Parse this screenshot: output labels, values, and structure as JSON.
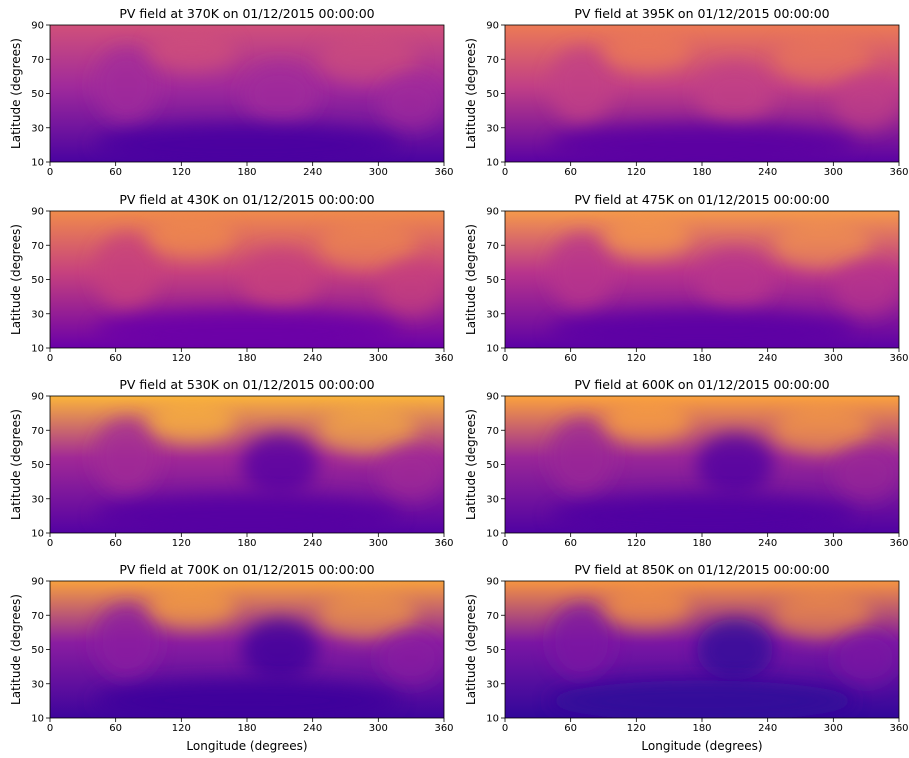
{
  "chart_data": [
    {
      "type": "heatmap",
      "title": "PV field at 370K on 01/12/2015 00:00:00",
      "ylabel": "Latitude (degrees)",
      "xlim": [
        0,
        360
      ],
      "ylim": [
        10,
        90
      ],
      "xticks": [
        0,
        60,
        120,
        180,
        240,
        300,
        360
      ],
      "yticks": [
        10,
        30,
        50,
        70,
        90
      ]
    },
    {
      "type": "heatmap",
      "title": "PV field at 395K on 01/12/2015 00:00:00",
      "ylabel": "Latitude (degrees)",
      "xlim": [
        0,
        360
      ],
      "ylim": [
        10,
        90
      ],
      "xticks": [
        0,
        60,
        120,
        180,
        240,
        300,
        360
      ],
      "yticks": [
        10,
        30,
        50,
        70,
        90
      ]
    },
    {
      "type": "heatmap",
      "title": "PV field at 430K on 01/12/2015 00:00:00",
      "ylabel": "Latitude (degrees)",
      "xlim": [
        0,
        360
      ],
      "ylim": [
        10,
        90
      ],
      "xticks": [
        0,
        60,
        120,
        180,
        240,
        300,
        360
      ],
      "yticks": [
        10,
        30,
        50,
        70,
        90
      ]
    },
    {
      "type": "heatmap",
      "title": "PV field at 475K on 01/12/2015 00:00:00",
      "ylabel": "Latitude (degrees)",
      "xlim": [
        0,
        360
      ],
      "ylim": [
        10,
        90
      ],
      "xticks": [
        0,
        60,
        120,
        180,
        240,
        300,
        360
      ],
      "yticks": [
        10,
        30,
        50,
        70,
        90
      ]
    },
    {
      "type": "heatmap",
      "title": "PV field at 530K on 01/12/2015 00:00:00",
      "ylabel": "Latitude (degrees)",
      "xlim": [
        0,
        360
      ],
      "ylim": [
        10,
        90
      ],
      "xticks": [
        0,
        60,
        120,
        180,
        240,
        300,
        360
      ],
      "yticks": [
        10,
        30,
        50,
        70,
        90
      ]
    },
    {
      "type": "heatmap",
      "title": "PV field at 600K on 01/12/2015 00:00:00",
      "ylabel": "Latitude (degrees)",
      "xlim": [
        0,
        360
      ],
      "ylim": [
        10,
        90
      ],
      "xticks": [
        0,
        60,
        120,
        180,
        240,
        300,
        360
      ],
      "yticks": [
        10,
        30,
        50,
        70,
        90
      ]
    },
    {
      "type": "heatmap",
      "title": "PV field at 700K on 01/12/2015 00:00:00",
      "xlabel": "Longitude (degrees)",
      "ylabel": "Latitude (degrees)",
      "xlim": [
        0,
        360
      ],
      "ylim": [
        10,
        90
      ],
      "xticks": [
        0,
        60,
        120,
        180,
        240,
        300,
        360
      ],
      "yticks": [
        10,
        30,
        50,
        70,
        90
      ]
    },
    {
      "type": "heatmap",
      "title": "PV field at 850K on 01/12/2015 00:00:00",
      "xlabel": "Longitude (degrees)",
      "ylabel": "Latitude (degrees)",
      "xlim": [
        0,
        360
      ],
      "ylim": [
        10,
        90
      ],
      "xticks": [
        0,
        60,
        120,
        180,
        240,
        300,
        360
      ],
      "yticks": [
        10,
        30,
        50,
        70,
        90
      ]
    }
  ]
}
